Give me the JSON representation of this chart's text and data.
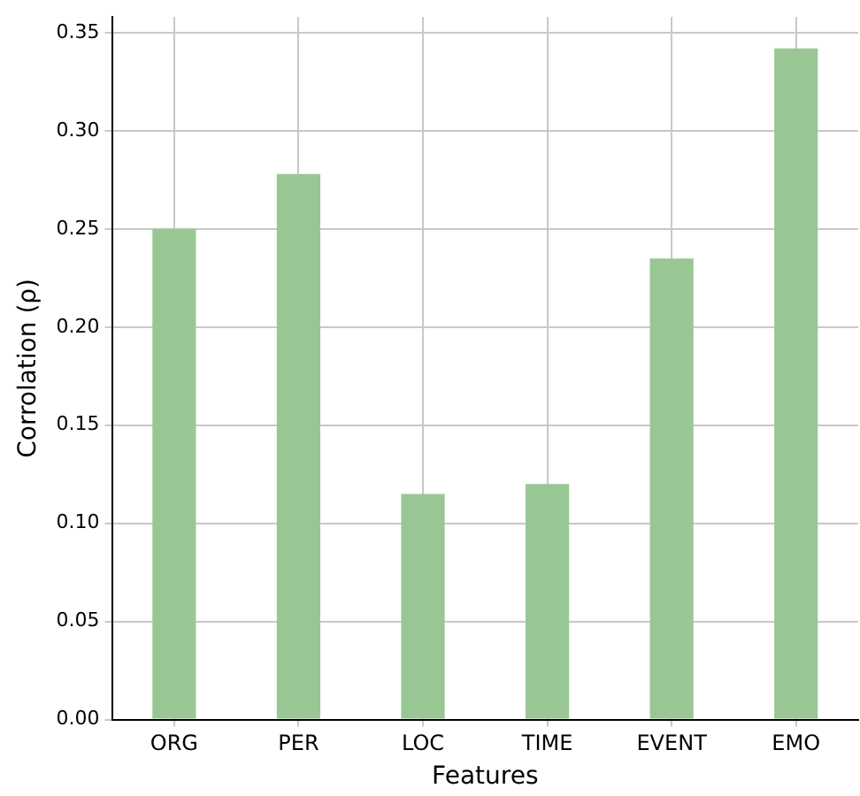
{
  "chart_data": {
    "type": "bar",
    "xlabel": "Features",
    "ylabel": "Corrolation (ρ)",
    "categories": [
      "ORG",
      "PER",
      "LOC",
      "TIME",
      "EVENT",
      "EMO"
    ],
    "values": [
      0.25,
      0.278,
      0.115,
      0.12,
      0.235,
      0.342
    ],
    "color": "#99c794",
    "ylim": [
      0,
      0.358
    ],
    "yticks": [
      {
        "value": 0,
        "label": "0.00"
      },
      0.05,
      {
        "value": 0.1,
        "label": "0.10"
      },
      0.15,
      {
        "value": 0.2,
        "label": "0.20"
      },
      0.25,
      {
        "value": 0.3,
        "label": "0.30"
      },
      0.35
    ],
    "grid": true
  }
}
